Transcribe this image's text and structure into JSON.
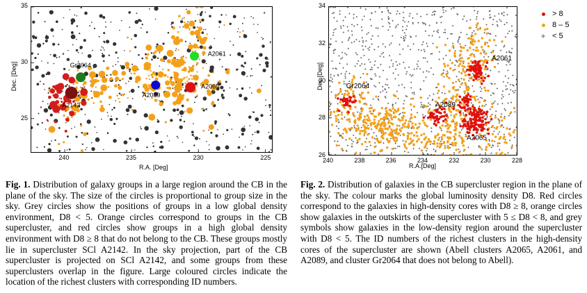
{
  "chart_data": [
    {
      "type": "scatter",
      "xlabel": "R.A. [Deg]",
      "ylabel": "Dec. [Deg]",
      "xlim": [
        242.5,
        224.5
      ],
      "ylim": [
        22,
        35
      ],
      "xticks": [
        "240",
        "235",
        "230",
        "225"
      ],
      "xtick_values": [
        240,
        235,
        230,
        225
      ],
      "yticks": [
        "25",
        "30",
        "35"
      ],
      "ytick_values": [
        25,
        30,
        35
      ],
      "series": [
        {
          "color": "#d41c1c"
        },
        {
          "color": "#f4a11a"
        },
        {
          "color": "#333333"
        }
      ],
      "clusters": [
        {
          "name": "Gr2064",
          "ra": 238.8,
          "dec": 28.7,
          "color": "#1e7a1e",
          "label_ra": 239.6,
          "label_dec": 29.6
        },
        {
          "name": "A2142",
          "ra": 239.5,
          "dec": 27.3,
          "color": "#7a1010",
          "label_ra": 240.2,
          "label_dec": 26.0
        },
        {
          "name": "A2061",
          "ra": 230.3,
          "dec": 30.6,
          "color": "#22dd22",
          "label_ra": 229.3,
          "label_dec": 30.6
        },
        {
          "name": "A2089",
          "ra": 233.2,
          "dec": 28.0,
          "color": "#0a0acc",
          "label_ra": 234.2,
          "label_dec": 26.9
        },
        {
          "name": "A2065",
          "ra": 230.6,
          "dec": 27.8,
          "color": "#e01010",
          "label_ra": 229.8,
          "label_dec": 27.7
        }
      ]
    },
    {
      "type": "scatter",
      "xlabel": "R.A.[Deg]",
      "ylabel": "Dec.[Deg]",
      "xlim": [
        240,
        228
      ],
      "ylim": [
        26,
        34
      ],
      "xticks": [
        "240",
        "238",
        "236",
        "234",
        "232",
        "230",
        "228"
      ],
      "xtick_values": [
        240,
        238,
        236,
        234,
        232,
        230,
        228
      ],
      "yticks": [
        "26",
        "28",
        "30",
        "32",
        "34"
      ],
      "ytick_values": [
        26,
        28,
        30,
        32,
        34
      ],
      "legend_position": "top-right",
      "series": [
        {
          "name": "> 8",
          "color": "#e01010",
          "marker": "dot"
        },
        {
          "name": "8 – 5",
          "color": "#f4a11a",
          "marker": "dot"
        },
        {
          "name": "< 5",
          "color": "#555555",
          "marker": "plus"
        }
      ],
      "clusters": [
        {
          "name": "A2061",
          "ra": 230.5,
          "dec": 30.6,
          "label_ra": 229.6,
          "label_dec": 31.1
        },
        {
          "name": "Gr2064",
          "ra": 238.8,
          "dec": 28.9,
          "label_ra": 238.9,
          "label_dec": 29.6
        },
        {
          "name": "A2089",
          "ra": 233.2,
          "dec": 28.1,
          "label_ra": 233.2,
          "label_dec": 28.6
        },
        {
          "name": "A2065",
          "ra": 230.6,
          "dec": 27.7,
          "label_ra": 231.2,
          "label_dec": 26.8
        }
      ]
    }
  ],
  "captions": {
    "fig1": {
      "label": "Fig. 1.",
      "text": "Distribution of galaxy groups in a large region around the CB in the plane of the sky. The size of the circles is proportional to group size in the sky. Grey circles show the positions of groups in a low global density environment, D8 < 5. Orange circles correspond to groups in the CB supercluster, and red circles show groups in a high global density environment with D8 ≥ 8 that do not belong to the CB. These groups mostly lie in supercluster SCl A2142. In the sky projection, part of the CB supercluster is projected on SCl A2142, and some groups from these superclusters overlap in the figure. Large coloured circles indicate the location of the richest clusters with corresponding ID numbers."
    },
    "fig2": {
      "label": "Fig. 2.",
      "text": "Distribution of galaxies in the CB supercluster region in the plane of the sky. The colour marks the global luminosity density D8. Red circles correspond to the galaxies in high-density cores with D8 ≥ 8, orange circles show galaxies in the outskirts of the supercluster with 5 ≤ D8 < 8, and grey symbols show galaxies in the low-density region around the supercluster with D8 < 5. The ID numbers of the richest clusters in the high-density cores of the supercluster are shown (Abell clusters A2065, A2061, and A2089, and cluster Gr2064 that does not belong to Abell)."
    }
  }
}
